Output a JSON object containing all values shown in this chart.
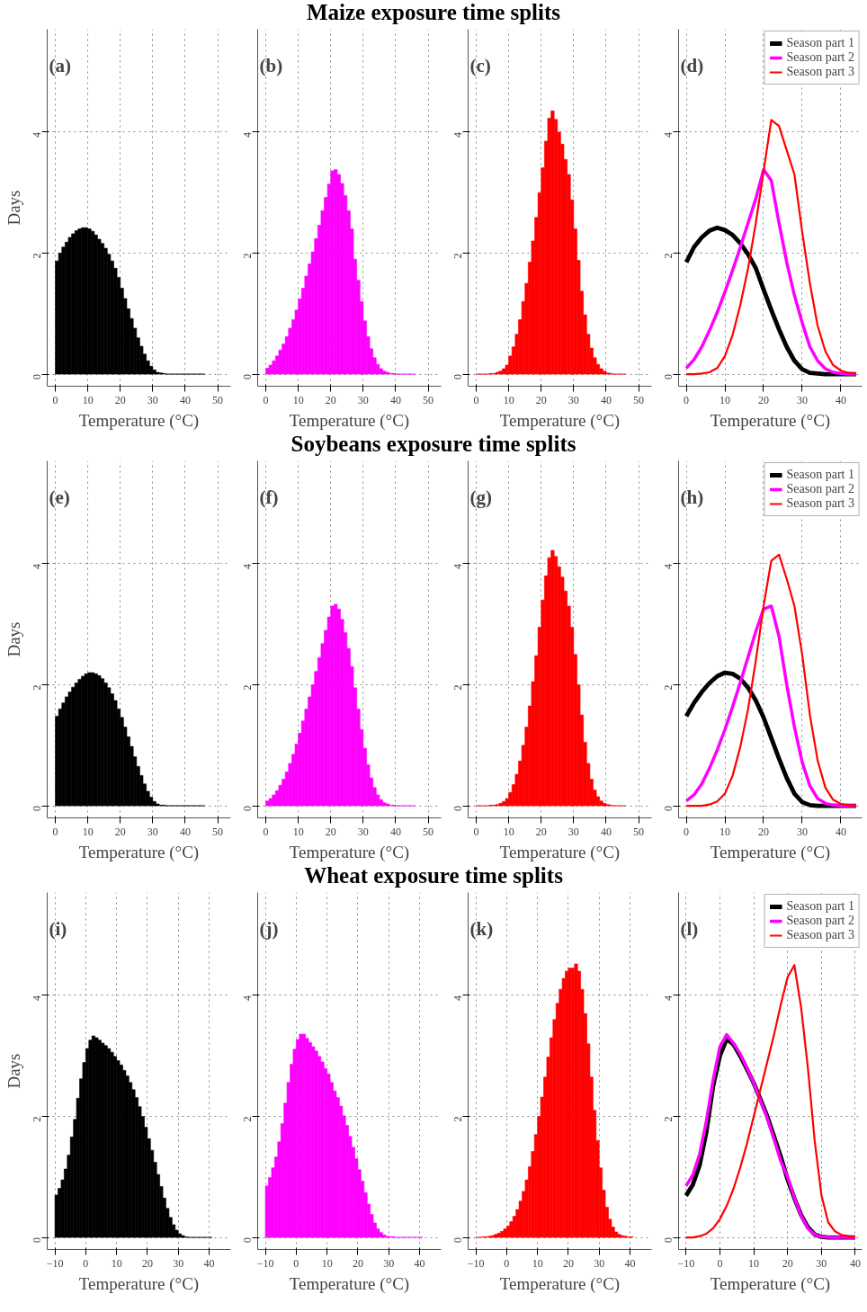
{
  "chart_data": [
    {
      "type": "histogram",
      "annotations": [
        "(a)"
      ],
      "ylabel": "Days",
      "xlabel": "Temperature (°C)",
      "color": "#000000",
      "grid": true,
      "xlim": [
        -2.5,
        54
      ],
      "xticks": [
        0,
        10,
        20,
        30,
        40,
        50
      ],
      "ylim": [
        -0.2,
        5.7
      ],
      "yticks": [
        0,
        2,
        4
      ],
      "bins": [
        0,
        1,
        2,
        3,
        4,
        5,
        6,
        7,
        8,
        9,
        10,
        11,
        12,
        13,
        14,
        15,
        16,
        17,
        18,
        19,
        20,
        21,
        22,
        23,
        24,
        25,
        26,
        27,
        28,
        29,
        30,
        31,
        32,
        33,
        34,
        35,
        36,
        37,
        38,
        39,
        40,
        41,
        42,
        43,
        44,
        45,
        46
      ],
      "values": [
        1.87,
        2.0,
        2.1,
        2.18,
        2.26,
        2.32,
        2.37,
        2.4,
        2.42,
        2.42,
        2.4,
        2.36,
        2.3,
        2.23,
        2.16,
        2.08,
        1.98,
        1.87,
        1.75,
        1.6,
        1.42,
        1.25,
        1.08,
        0.92,
        0.76,
        0.6,
        0.46,
        0.33,
        0.22,
        0.13,
        0.07,
        0.03,
        0.02,
        0.01,
        0,
        0,
        0,
        0,
        0,
        0,
        0,
        0,
        0,
        0,
        0,
        0
      ]
    },
    {
      "type": "histogram",
      "title": "Maize exposure time splits",
      "annotations": [
        "(b)"
      ],
      "xlabel": "Temperature (°C)",
      "color": "#ff00ff",
      "grid": true,
      "xlim": [
        -2.5,
        54
      ],
      "xticks": [
        0,
        10,
        20,
        30,
        40,
        50
      ],
      "ylim": [
        -0.2,
        5.7
      ],
      "yticks": [
        0,
        2,
        4
      ],
      "bins": [
        0,
        1,
        2,
        3,
        4,
        5,
        6,
        7,
        8,
        9,
        10,
        11,
        12,
        13,
        14,
        15,
        16,
        17,
        18,
        19,
        20,
        21,
        22,
        23,
        24,
        25,
        26,
        27,
        28,
        29,
        30,
        31,
        32,
        33,
        34,
        35,
        36,
        37,
        38,
        39,
        40,
        41,
        42,
        43,
        44,
        45,
        46
      ],
      "values": [
        0.1,
        0.15,
        0.22,
        0.3,
        0.4,
        0.5,
        0.62,
        0.76,
        0.9,
        1.06,
        1.24,
        1.42,
        1.62,
        1.82,
        2.02,
        2.24,
        2.46,
        2.7,
        2.92,
        3.14,
        3.36,
        3.38,
        3.3,
        3.15,
        2.95,
        2.7,
        2.4,
        1.9,
        1.55,
        1.2,
        0.88,
        0.62,
        0.42,
        0.27,
        0.16,
        0.09,
        0.05,
        0.03,
        0.01,
        0.01,
        0,
        0,
        0,
        0,
        0,
        0
      ]
    },
    {
      "type": "histogram",
      "annotations": [
        "(c)"
      ],
      "xlabel": "Temperature (°C)",
      "color": "#ff0000",
      "grid": true,
      "xlim": [
        -2.5,
        54
      ],
      "xticks": [
        0,
        10,
        20,
        30,
        40,
        50
      ],
      "ylim": [
        -0.2,
        5.7
      ],
      "yticks": [
        0,
        2,
        4
      ],
      "bins": [
        0,
        1,
        2,
        3,
        4,
        5,
        6,
        7,
        8,
        9,
        10,
        11,
        12,
        13,
        14,
        15,
        16,
        17,
        18,
        19,
        20,
        21,
        22,
        23,
        24,
        25,
        26,
        27,
        28,
        29,
        30,
        31,
        32,
        33,
        34,
        35,
        36,
        37,
        38,
        39,
        40,
        41,
        42,
        43,
        44,
        45,
        46
      ],
      "values": [
        0,
        0,
        0,
        0,
        0.01,
        0.01,
        0.03,
        0.05,
        0.09,
        0.15,
        0.3,
        0.45,
        0.66,
        0.9,
        1.2,
        1.5,
        1.85,
        2.2,
        2.59,
        3.0,
        3.41,
        3.85,
        4.23,
        4.35,
        4.21,
        4.0,
        3.8,
        3.55,
        3.3,
        2.88,
        2.4,
        1.88,
        1.37,
        0.98,
        0.66,
        0.43,
        0.27,
        0.16,
        0.09,
        0.05,
        0.02,
        0.01,
        0,
        0,
        0,
        0
      ]
    },
    {
      "type": "line",
      "annotations": [
        "(d)"
      ],
      "xlabel": "Temperature (°C)",
      "grid": true,
      "legend": "top right",
      "xlim": [
        -2,
        45.5
      ],
      "xticks": [
        0,
        10,
        20,
        30,
        40
      ],
      "ylim": [
        -0.2,
        5.7
      ],
      "yticks": [
        0,
        2,
        4
      ],
      "series": [
        {
          "name": "Season part 1",
          "color": "#000000",
          "x": [
            0,
            2,
            4,
            6,
            8,
            10,
            12,
            14,
            16,
            18,
            20,
            22,
            24,
            26,
            28,
            30,
            32,
            34,
            36,
            38,
            40,
            42,
            44
          ],
          "values": [
            1.85,
            2.1,
            2.26,
            2.37,
            2.42,
            2.38,
            2.3,
            2.16,
            1.98,
            1.75,
            1.4,
            1.06,
            0.74,
            0.45,
            0.22,
            0.08,
            0.02,
            0.01,
            0,
            0,
            0,
            0,
            0
          ]
        },
        {
          "name": "Season part 2",
          "color": "#ff00ff",
          "x": [
            0,
            2,
            4,
            6,
            8,
            10,
            12,
            14,
            16,
            18,
            20,
            22,
            24,
            26,
            28,
            30,
            32,
            34,
            36,
            38,
            40,
            42,
            44
          ],
          "values": [
            0.1,
            0.24,
            0.45,
            0.72,
            1.02,
            1.36,
            1.72,
            2.1,
            2.5,
            2.9,
            3.38,
            3.2,
            2.5,
            1.85,
            1.3,
            0.85,
            0.45,
            0.22,
            0.09,
            0.03,
            0.01,
            0,
            0
          ]
        },
        {
          "name": "Season part 3",
          "color": "#ff0000",
          "x": [
            0,
            2,
            4,
            6,
            8,
            10,
            12,
            14,
            16,
            18,
            20,
            22,
            24,
            26,
            28,
            30,
            32,
            34,
            36,
            38,
            40,
            42,
            44
          ],
          "values": [
            0,
            0,
            0.01,
            0.03,
            0.1,
            0.3,
            0.65,
            1.15,
            1.75,
            2.5,
            3.35,
            4.2,
            4.1,
            3.7,
            3.3,
            2.35,
            1.5,
            0.8,
            0.38,
            0.15,
            0.06,
            0.02,
            0.01
          ]
        }
      ]
    },
    {
      "type": "histogram",
      "annotations": [
        "(e)"
      ],
      "ylabel": "Days",
      "xlabel": "Temperature (°C)",
      "color": "#000000",
      "grid": true,
      "xlim": [
        -2.5,
        54
      ],
      "xticks": [
        0,
        10,
        20,
        30,
        40,
        50
      ],
      "ylim": [
        -0.2,
        5.7
      ],
      "yticks": [
        0,
        2,
        4
      ],
      "bins": [
        0,
        1,
        2,
        3,
        4,
        5,
        6,
        7,
        8,
        9,
        10,
        11,
        12,
        13,
        14,
        15,
        16,
        17,
        18,
        19,
        20,
        21,
        22,
        23,
        24,
        25,
        26,
        27,
        28,
        29,
        30,
        31,
        32,
        33,
        34,
        35,
        36,
        37,
        38,
        39,
        40,
        41,
        42,
        43,
        44,
        45,
        46
      ],
      "values": [
        1.48,
        1.6,
        1.7,
        1.8,
        1.88,
        1.96,
        2.03,
        2.09,
        2.14,
        2.18,
        2.2,
        2.2,
        2.18,
        2.15,
        2.1,
        2.03,
        1.95,
        1.85,
        1.74,
        1.6,
        1.46,
        1.3,
        1.14,
        0.98,
        0.81,
        0.65,
        0.5,
        0.36,
        0.24,
        0.14,
        0.07,
        0.03,
        0.01,
        0.01,
        0,
        0,
        0,
        0,
        0,
        0,
        0,
        0,
        0,
        0,
        0,
        0
      ]
    },
    {
      "type": "histogram",
      "title": "Soybeans exposure time splits",
      "annotations": [
        "(f)"
      ],
      "xlabel": "Temperature (°C)",
      "color": "#ff00ff",
      "grid": true,
      "xlim": [
        -2.5,
        54
      ],
      "xticks": [
        0,
        10,
        20,
        30,
        40,
        50
      ],
      "ylim": [
        -0.2,
        5.7
      ],
      "yticks": [
        0,
        2,
        4
      ],
      "bins": [
        0,
        1,
        2,
        3,
        4,
        5,
        6,
        7,
        8,
        9,
        10,
        11,
        12,
        13,
        14,
        15,
        16,
        17,
        18,
        19,
        20,
        21,
        22,
        23,
        24,
        25,
        26,
        27,
        28,
        29,
        30,
        31,
        32,
        33,
        34,
        35,
        36,
        37,
        38,
        39,
        40,
        41,
        42,
        43,
        44,
        45,
        46
      ],
      "values": [
        0.08,
        0.12,
        0.18,
        0.25,
        0.34,
        0.44,
        0.56,
        0.7,
        0.85,
        1.02,
        1.2,
        1.4,
        1.6,
        1.8,
        2.0,
        2.22,
        2.45,
        2.68,
        2.9,
        3.12,
        3.3,
        3.33,
        3.25,
        3.08,
        2.86,
        2.6,
        2.3,
        1.95,
        1.6,
        1.26,
        0.95,
        0.68,
        0.46,
        0.3,
        0.18,
        0.1,
        0.05,
        0.03,
        0.01,
        0.01,
        0,
        0,
        0,
        0,
        0,
        0
      ]
    },
    {
      "type": "histogram",
      "annotations": [
        "(g)"
      ],
      "xlabel": "Temperature (°C)",
      "color": "#ff0000",
      "grid": true,
      "xlim": [
        -2.5,
        54
      ],
      "xticks": [
        0,
        10,
        20,
        30,
        40,
        50
      ],
      "ylim": [
        -0.2,
        5.7
      ],
      "yticks": [
        0,
        2,
        4
      ],
      "bins": [
        0,
        1,
        2,
        3,
        4,
        5,
        6,
        7,
        8,
        9,
        10,
        11,
        12,
        13,
        14,
        15,
        16,
        17,
        18,
        19,
        20,
        21,
        22,
        23,
        24,
        25,
        26,
        27,
        28,
        29,
        30,
        31,
        32,
        33,
        34,
        35,
        36,
        37,
        38,
        39,
        40,
        41,
        42,
        43,
        44,
        45,
        46
      ],
      "values": [
        0,
        0,
        0,
        0,
        0.01,
        0.01,
        0.02,
        0.04,
        0.07,
        0.12,
        0.22,
        0.35,
        0.52,
        0.74,
        1.0,
        1.3,
        1.65,
        2.05,
        2.48,
        2.95,
        3.4,
        3.8,
        4.1,
        4.22,
        4.12,
        3.95,
        3.78,
        3.55,
        3.3,
        2.95,
        2.5,
        2.0,
        1.5,
        1.05,
        0.7,
        0.44,
        0.26,
        0.15,
        0.08,
        0.04,
        0.02,
        0.01,
        0,
        0,
        0,
        0
      ]
    },
    {
      "type": "line",
      "annotations": [
        "(h)"
      ],
      "xlabel": "Temperature (°C)",
      "grid": true,
      "legend": "top right",
      "xlim": [
        -2,
        45.5
      ],
      "xticks": [
        0,
        10,
        20,
        30,
        40
      ],
      "ylim": [
        -0.2,
        5.7
      ],
      "yticks": [
        0,
        2,
        4
      ],
      "series": [
        {
          "name": "Season part 1",
          "color": "#000000",
          "x": [
            0,
            2,
            4,
            6,
            8,
            10,
            12,
            14,
            16,
            18,
            20,
            22,
            24,
            26,
            28,
            30,
            32,
            34,
            36,
            38,
            40,
            42,
            44
          ],
          "values": [
            1.48,
            1.7,
            1.88,
            2.03,
            2.14,
            2.2,
            2.18,
            2.1,
            1.95,
            1.74,
            1.46,
            1.12,
            0.78,
            0.46,
            0.2,
            0.06,
            0.01,
            0,
            0,
            0,
            0,
            0,
            0
          ]
        },
        {
          "name": "Season part 2",
          "color": "#ff00ff",
          "x": [
            0,
            2,
            4,
            6,
            8,
            10,
            12,
            14,
            16,
            18,
            20,
            22,
            24,
            26,
            28,
            30,
            32,
            34,
            36,
            38,
            40,
            42,
            44
          ],
          "values": [
            0.08,
            0.18,
            0.36,
            0.62,
            0.92,
            1.26,
            1.64,
            2.04,
            2.46,
            2.88,
            3.25,
            3.3,
            2.8,
            2.0,
            1.3,
            0.72,
            0.33,
            0.12,
            0.04,
            0.01,
            0,
            0,
            0
          ]
        },
        {
          "name": "Season part 3",
          "color": "#ff0000",
          "x": [
            0,
            2,
            4,
            6,
            8,
            10,
            12,
            14,
            16,
            18,
            20,
            22,
            24,
            26,
            28,
            30,
            32,
            34,
            36,
            38,
            40,
            42,
            44
          ],
          "values": [
            0,
            0,
            0,
            0.02,
            0.07,
            0.2,
            0.5,
            0.98,
            1.6,
            2.4,
            3.3,
            4.05,
            4.15,
            3.75,
            3.3,
            2.5,
            1.5,
            0.75,
            0.3,
            0.1,
            0.03,
            0.01,
            0
          ]
        }
      ]
    },
    {
      "type": "histogram",
      "annotations": [
        "(i)"
      ],
      "ylabel": "Days",
      "xlabel": "Temperature (°C)",
      "color": "#000000",
      "grid": true,
      "xlim": [
        -12.5,
        47
      ],
      "xticks": [
        -10,
        0,
        10,
        20,
        30,
        40
      ],
      "ylim": [
        -0.2,
        5.7
      ],
      "yticks": [
        0,
        2,
        4
      ],
      "bins": [
        -10,
        -9,
        -8,
        -7,
        -6,
        -5,
        -4,
        -3,
        -2,
        -1,
        0,
        1,
        2,
        3,
        4,
        5,
        6,
        7,
        8,
        9,
        10,
        11,
        12,
        13,
        14,
        15,
        16,
        17,
        18,
        19,
        20,
        21,
        22,
        23,
        24,
        25,
        26,
        27,
        28,
        29,
        30,
        31,
        32,
        33,
        34,
        35,
        36,
        37,
        38,
        39,
        40,
        41
      ],
      "values": [
        0.7,
        0.81,
        0.95,
        1.13,
        1.36,
        1.66,
        1.95,
        2.3,
        2.62,
        2.89,
        3.12,
        3.26,
        3.33,
        3.3,
        3.26,
        3.21,
        3.17,
        3.12,
        3.06,
        2.99,
        2.92,
        2.85,
        2.76,
        2.67,
        2.56,
        2.44,
        2.31,
        2.16,
        2.0,
        1.82,
        1.63,
        1.44,
        1.24,
        1.04,
        0.84,
        0.65,
        0.48,
        0.33,
        0.21,
        0.12,
        0.06,
        0.03,
        0.01,
        0,
        0,
        0,
        0,
        0,
        0,
        0,
        0
      ]
    },
    {
      "type": "histogram",
      "title": "Wheat exposure time splits",
      "annotations": [
        "(j)"
      ],
      "xlabel": "Temperature (°C)",
      "color": "#ff00ff",
      "grid": true,
      "xlim": [
        -12.5,
        47
      ],
      "xticks": [
        -10,
        0,
        10,
        20,
        30,
        40
      ],
      "ylim": [
        -0.2,
        5.7
      ],
      "yticks": [
        0,
        2,
        4
      ],
      "bins": [
        -10,
        -9,
        -8,
        -7,
        -6,
        -5,
        -4,
        -3,
        -2,
        -1,
        0,
        1,
        2,
        3,
        4,
        5,
        6,
        7,
        8,
        9,
        10,
        11,
        12,
        13,
        14,
        15,
        16,
        17,
        18,
        19,
        20,
        21,
        22,
        23,
        24,
        25,
        26,
        27,
        28,
        29,
        30,
        31,
        32,
        33,
        34,
        35,
        36,
        37,
        38,
        39,
        40,
        41
      ],
      "values": [
        0.85,
        0.99,
        1.15,
        1.33,
        1.58,
        1.88,
        2.22,
        2.56,
        2.86,
        3.11,
        3.27,
        3.36,
        3.36,
        3.29,
        3.22,
        3.15,
        3.08,
        2.99,
        2.9,
        2.79,
        2.7,
        2.56,
        2.42,
        2.31,
        2.17,
        2.01,
        1.85,
        1.67,
        1.49,
        1.3,
        1.12,
        0.93,
        0.74,
        0.55,
        0.38,
        0.24,
        0.14,
        0.08,
        0.04,
        0.02,
        0.01,
        0.01,
        0,
        0,
        0,
        0,
        0,
        0,
        0,
        0,
        0
      ]
    },
    {
      "type": "histogram",
      "annotations": [
        "(k)"
      ],
      "xlabel": "Temperature (°C)",
      "color": "#ff0000",
      "grid": true,
      "xlim": [
        -12.5,
        47
      ],
      "xticks": [
        -10,
        0,
        10,
        20,
        30,
        40
      ],
      "ylim": [
        -0.2,
        5.7
      ],
      "yticks": [
        0,
        2,
        4
      ],
      "bins": [
        -10,
        -9,
        -8,
        -7,
        -6,
        -5,
        -4,
        -3,
        -2,
        -1,
        0,
        1,
        2,
        3,
        4,
        5,
        6,
        7,
        8,
        9,
        10,
        11,
        12,
        13,
        14,
        15,
        16,
        17,
        18,
        19,
        20,
        21,
        22,
        23,
        24,
        25,
        26,
        27,
        28,
        29,
        30,
        31,
        32,
        33,
        34,
        35,
        36,
        37,
        38,
        39,
        40,
        41
      ],
      "values": [
        0,
        0,
        0.01,
        0.01,
        0.02,
        0.03,
        0.05,
        0.07,
        0.1,
        0.14,
        0.19,
        0.26,
        0.35,
        0.46,
        0.6,
        0.76,
        0.95,
        1.17,
        1.42,
        1.7,
        2.0,
        2.32,
        2.65,
        2.98,
        3.3,
        3.6,
        3.87,
        4.1,
        4.28,
        4.4,
        4.45,
        4.45,
        4.52,
        4.4,
        4.1,
        3.7,
        3.2,
        2.65,
        2.1,
        1.6,
        1.15,
        0.78,
        0.5,
        0.3,
        0.17,
        0.09,
        0.05,
        0.03,
        0.02,
        0.01,
        0.01
      ]
    },
    {
      "type": "line",
      "annotations": [
        "(l)"
      ],
      "xlabel": "Temperature (°C)",
      "grid": true,
      "legend": "top right",
      "xlim": [
        -12.2,
        42
      ],
      "xticks": [
        -10,
        0,
        10,
        20,
        30,
        40
      ],
      "ylim": [
        -0.2,
        5.7
      ],
      "yticks": [
        0,
        2,
        4
      ],
      "series": [
        {
          "name": "Season part 1",
          "color": "#000000",
          "x": [
            -10,
            -8,
            -6,
            -4,
            -2,
            0,
            2,
            4,
            6,
            8,
            10,
            12,
            14,
            16,
            18,
            20,
            22,
            24,
            26,
            28,
            30,
            32,
            34,
            36,
            38,
            40
          ],
          "values": [
            0.69,
            0.87,
            1.19,
            1.74,
            2.5,
            3.0,
            3.28,
            3.19,
            3.0,
            2.78,
            2.55,
            2.28,
            2.0,
            1.67,
            1.33,
            0.96,
            0.65,
            0.37,
            0.17,
            0.05,
            0.01,
            0,
            0,
            0,
            0,
            0
          ]
        },
        {
          "name": "Season part 2",
          "color": "#ff00ff",
          "x": [
            -10,
            -8,
            -6,
            -4,
            -2,
            0,
            2,
            4,
            6,
            8,
            10,
            12,
            14,
            16,
            18,
            20,
            22,
            24,
            26,
            28,
            30,
            32,
            34,
            36,
            38,
            40
          ],
          "values": [
            0.85,
            1.03,
            1.37,
            1.92,
            2.6,
            3.15,
            3.35,
            3.21,
            3.03,
            2.8,
            2.55,
            2.26,
            1.97,
            1.62,
            1.26,
            1.0,
            0.66,
            0.36,
            0.15,
            0.05,
            0.01,
            0,
            0,
            0,
            0,
            0
          ]
        },
        {
          "name": "Season part 3",
          "color": "#ff0000",
          "x": [
            -10,
            -8,
            -6,
            -4,
            -2,
            0,
            2,
            4,
            6,
            8,
            10,
            12,
            14,
            16,
            18,
            20,
            22,
            24,
            26,
            28,
            30,
            32,
            34,
            36,
            38,
            40
          ],
          "values": [
            0,
            0,
            0.02,
            0.06,
            0.15,
            0.3,
            0.52,
            0.8,
            1.15,
            1.55,
            2.0,
            2.45,
            2.9,
            3.35,
            3.85,
            4.3,
            4.5,
            3.8,
            2.8,
            1.6,
            0.7,
            0.25,
            0.1,
            0.04,
            0.02,
            0.01
          ]
        }
      ]
    }
  ]
}
